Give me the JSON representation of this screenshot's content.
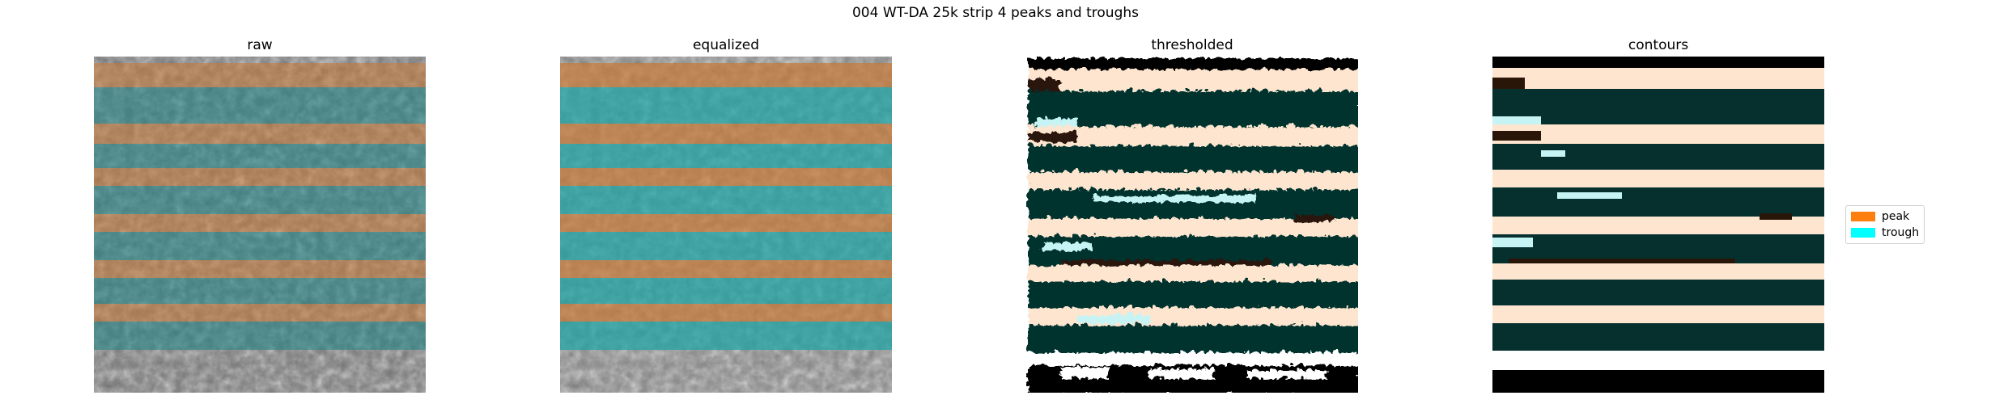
{
  "figure": {
    "title": "004 WT-DA 25k strip 4 peaks and troughs"
  },
  "panels": [
    {
      "title": "raw"
    },
    {
      "title": "equalized"
    },
    {
      "title": "thresholded"
    },
    {
      "title": "contours"
    }
  ],
  "legend": {
    "items": [
      {
        "label": "peak",
        "color": "#ff7f0e"
      },
      {
        "label": "trough",
        "color": "#00ffff"
      }
    ]
  },
  "colors": {
    "peak_overlay": "#b86a2c",
    "trough_overlay": "#1f7f80",
    "trough_dark": "#06302e",
    "peak_light": "#fde5cf",
    "trough_light": "#c6f4f4",
    "peak_dark": "#2a1608",
    "background_black": "#000000",
    "background_white": "#ffffff"
  }
}
